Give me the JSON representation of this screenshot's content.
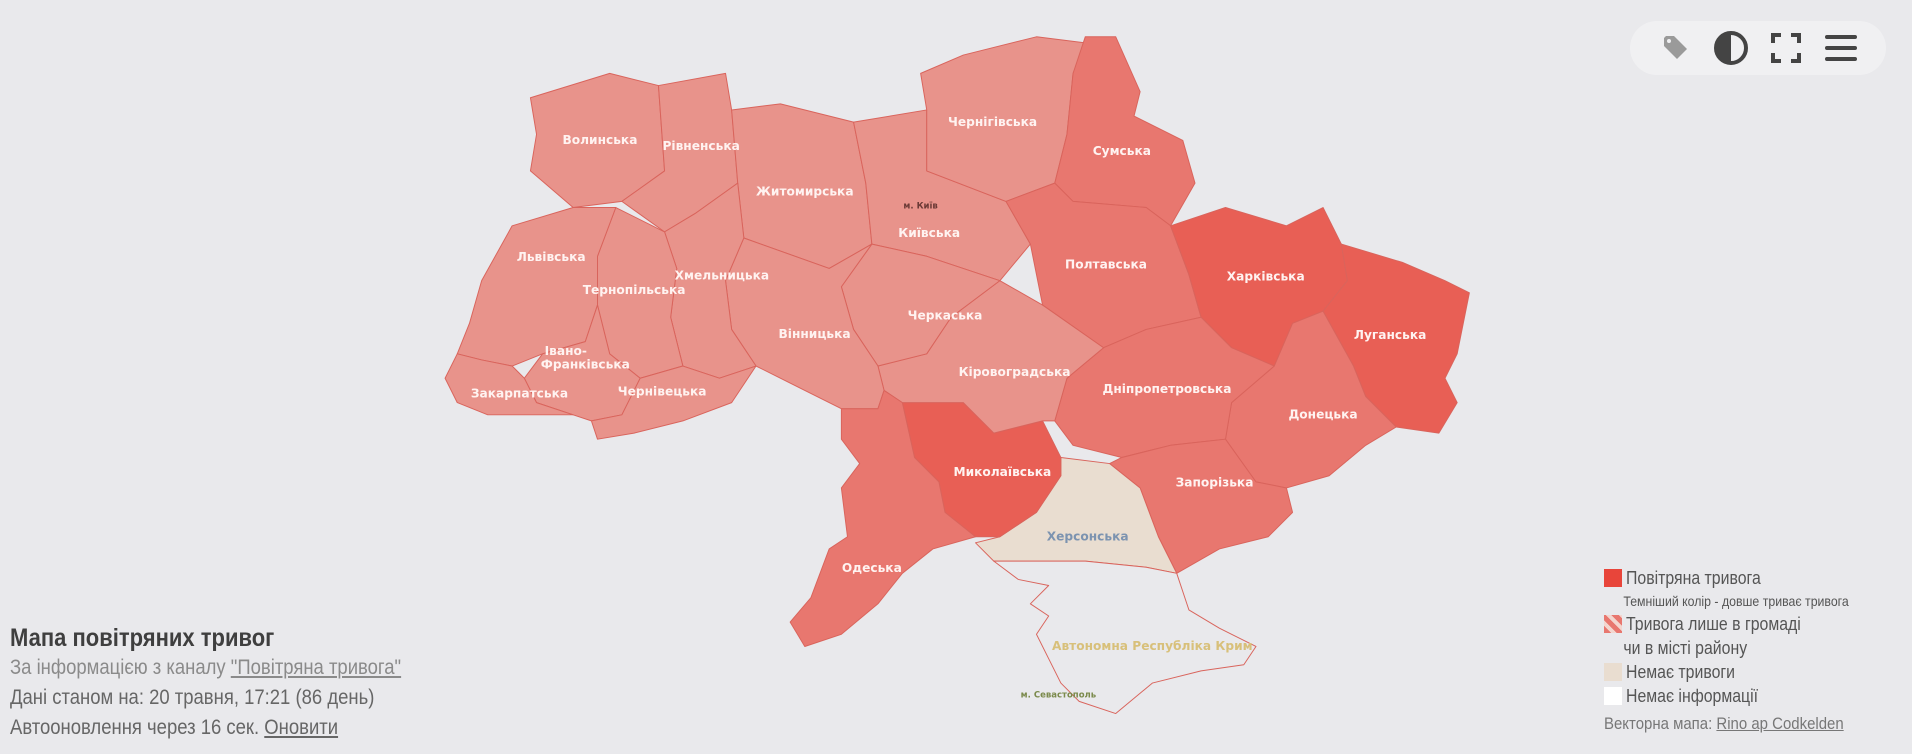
{
  "toolbar": {
    "icons": [
      "tag-icon",
      "contrast-icon",
      "fullscreen-icon",
      "menu-icon"
    ]
  },
  "info": {
    "title": "Мапа повітряних тривог",
    "source_prefix": "За інформацією з каналу ",
    "source_link": "\"Повітряна тривога\"",
    "data_as_of": "Дані станом на: 20 травня, 17:21 (86 день)",
    "autoupdate": "Автооновлення через 16 сек. ",
    "refresh_link": "Оновити"
  },
  "legend": {
    "alert": "Повітряна тривога",
    "alert_note": "Темніший колір - довше триває тривога",
    "partial_line1": "Тривога лише в громаді",
    "partial_line2": "чи в місті району",
    "no_alert": "Немає тривоги",
    "no_info": "Немає інформації",
    "credit_prefix": "Векторна мапа: ",
    "credit_link": "Rino ap Codkelden"
  },
  "colors": {
    "alert_light": "#e8938b",
    "alert_medium": "#e8776f",
    "alert_dark": "#e85f55",
    "alert_legend": "#e8453a",
    "no_alert": "#e9ddd0",
    "no_info": "#ffffff",
    "background": "#e9e9ec"
  },
  "map": {
    "regions": [
      {
        "name": "Волинська",
        "status": "alert",
        "level": "light"
      },
      {
        "name": "Рівненська",
        "status": "alert",
        "level": "light"
      },
      {
        "name": "Житомирська",
        "status": "alert",
        "level": "light"
      },
      {
        "name": "Київська",
        "status": "alert",
        "level": "light"
      },
      {
        "name": "м. Київ",
        "status": "alert",
        "level": "light"
      },
      {
        "name": "Чернігівська",
        "status": "alert",
        "level": "light"
      },
      {
        "name": "Сумська",
        "status": "alert",
        "level": "medium"
      },
      {
        "name": "Полтавська",
        "status": "alert",
        "level": "medium"
      },
      {
        "name": "Харківська",
        "status": "alert",
        "level": "dark"
      },
      {
        "name": "Луганська",
        "status": "alert",
        "level": "dark"
      },
      {
        "name": "Донецька",
        "status": "alert",
        "level": "medium"
      },
      {
        "name": "Дніпропетровська",
        "status": "alert",
        "level": "medium"
      },
      {
        "name": "Запорізька",
        "status": "alert",
        "level": "medium"
      },
      {
        "name": "Херсонська",
        "status": "no_alert",
        "level": "none"
      },
      {
        "name": "Миколаївська",
        "status": "alert",
        "level": "dark"
      },
      {
        "name": "Кіровоградська",
        "status": "alert",
        "level": "light"
      },
      {
        "name": "Черкаська",
        "status": "alert",
        "level": "light"
      },
      {
        "name": "Вінницька",
        "status": "alert",
        "level": "light"
      },
      {
        "name": "Хмельницька",
        "status": "alert",
        "level": "light"
      },
      {
        "name": "Тернопільська",
        "status": "alert",
        "level": "light"
      },
      {
        "name": "Львівська",
        "status": "alert",
        "level": "light"
      },
      {
        "name": "Івано-",
        "status": "alert",
        "level": "light"
      },
      {
        "name": "Франківська",
        "status": "alert",
        "level": "light"
      },
      {
        "name": "Закарпатська",
        "status": "alert",
        "level": "light"
      },
      {
        "name": "Чернівецька",
        "status": "alert",
        "level": "light"
      },
      {
        "name": "Одеська",
        "status": "alert",
        "level": "medium"
      },
      {
        "name": "Автономна Республіка Крим",
        "status": "no_info",
        "level": "none"
      },
      {
        "name": "м. Севастополь",
        "status": "no_info",
        "level": "none"
      }
    ]
  }
}
